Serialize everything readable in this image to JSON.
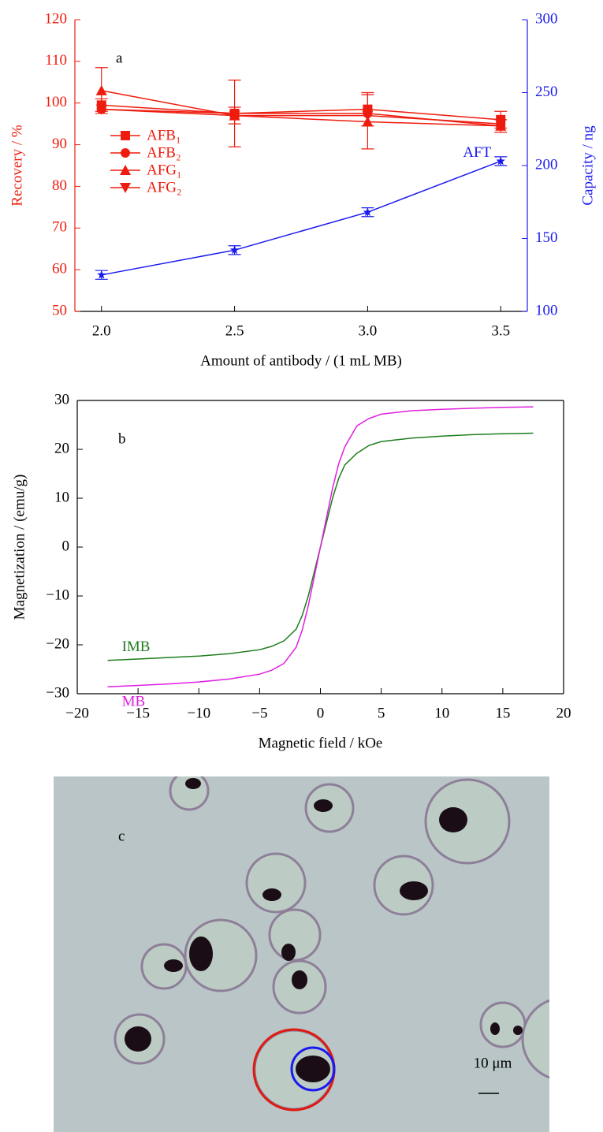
{
  "chart_data": [
    {
      "type": "line",
      "panel_label": "a",
      "x_label": "Amount of antibody / (1 mL MB)",
      "y_label": "Recovery / %",
      "y2_label": "Capacity / ng",
      "x": [
        2.0,
        2.5,
        3.0,
        3.5
      ],
      "xlim": [
        1.9,
        3.6
      ],
      "xticks": [
        {
          "value": 2,
          "label": "2.0"
        },
        2.5,
        {
          "value": 3,
          "label": "3.0"
        },
        3.5
      ],
      "ylim": [
        50,
        120
      ],
      "yticks": [
        50,
        60,
        70,
        80,
        90,
        100,
        110,
        120
      ],
      "y2lim": [
        100,
        300
      ],
      "y2ticks": [
        100,
        150,
        200,
        250,
        300
      ],
      "legend": "center left",
      "series": [
        {
          "name": "AFB₁",
          "color": "#ee1c0e",
          "marker": "square",
          "values": [
            99.5,
            97.5,
            98.5,
            96
          ],
          "errors": [
            1.5,
            8,
            4,
            2
          ]
        },
        {
          "name": "AFB₂",
          "color": "#ee1c0e",
          "marker": "circle",
          "values": [
            98.5,
            97.5,
            97.5,
            94.5
          ]
        },
        {
          "name": "AFG₁",
          "color": "#ee1c0e",
          "marker": "triangle-up",
          "values": [
            103,
            97,
            95.5,
            94.5
          ],
          "errors": [
            5.5,
            2,
            6.5,
            1.5
          ]
        },
        {
          "name": "AFG₂",
          "color": "#ee1c0e",
          "marker": "triangle-down",
          "values": [
            98.5,
            97,
            97,
            95
          ]
        },
        {
          "name": "AFT",
          "color": "#1a1aee",
          "marker": "star",
          "axis": "y2",
          "values": [
            125,
            142,
            168,
            203
          ],
          "errors": [
            3,
            3,
            3,
            3
          ]
        }
      ]
    },
    {
      "type": "line",
      "panel_label": "b",
      "x_label": "Magnetic field / kOe",
      "y_label": "Magnetization / (emu/g)",
      "x": [
        -17.5,
        -15,
        -12.5,
        -10,
        -7.5,
        -5,
        -4,
        -3,
        -2,
        -1.5,
        -1,
        -0.5,
        0,
        0.5,
        1,
        1.5,
        2,
        3,
        4,
        5,
        7.5,
        10,
        12.5,
        15,
        17.5
      ],
      "xlim": [
        -20,
        20
      ],
      "xticks": [
        {
          "value": -20,
          "label": "−20"
        },
        {
          "value": -15,
          "label": "−15"
        },
        {
          "value": -10,
          "label": "−10"
        },
        {
          "value": -5,
          "label": "−5"
        },
        0,
        5,
        10,
        15,
        20
      ],
      "ylim": [
        -30,
        30
      ],
      "yticks": [
        {
          "value": -30,
          "label": "−30"
        },
        {
          "value": -20,
          "label": "−20"
        },
        {
          "value": -10,
          "label": "−10"
        },
        0,
        10,
        20,
        30
      ],
      "legend": "inline",
      "series": [
        {
          "name": "IMB",
          "color": "#1e7d1e",
          "values": [
            -23.2,
            -22.9,
            -22.6,
            -22.3,
            -21.8,
            -21.0,
            -20.3,
            -19.2,
            -16.8,
            -14,
            -10,
            -5,
            0,
            5,
            10,
            14,
            16.8,
            19.2,
            20.8,
            21.6,
            22.3,
            22.7,
            23.0,
            23.2,
            23.3
          ]
        },
        {
          "name": "MB",
          "color": "#e020e0",
          "values": [
            -28.6,
            -28.3,
            -28.0,
            -27.6,
            -27.0,
            -26.0,
            -25.2,
            -23.8,
            -20.5,
            -17,
            -12,
            -6,
            0,
            6,
            12,
            17,
            20.5,
            24.8,
            26.3,
            27.2,
            27.9,
            28.2,
            28.4,
            28.6,
            28.7
          ]
        }
      ]
    }
  ],
  "micrograph": {
    "panel_label": "c",
    "scale_bar": "10 μm"
  }
}
